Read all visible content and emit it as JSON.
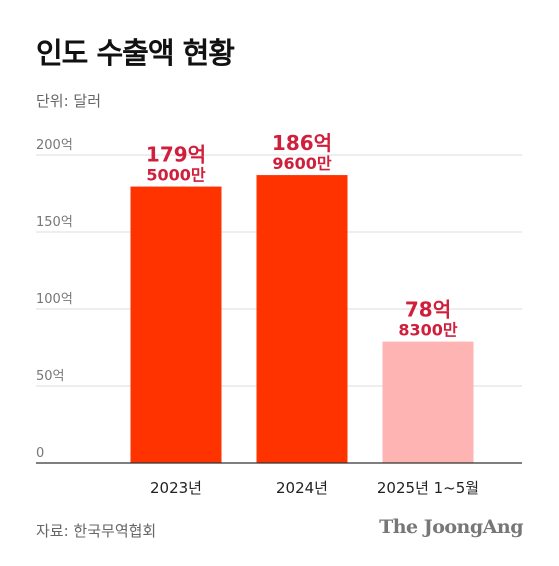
{
  "header": {
    "title": "인도 수출액 현황",
    "unit": "단위: 달러"
  },
  "footer": {
    "source": "자료: 한국무역협회",
    "brand": "The JoongAng"
  },
  "colors": {
    "bar_primary": "#ff3300",
    "bar_partial": "#ffb4b4",
    "label_text": "#d01f3c",
    "grid": "#dddddd",
    "axis": "#333333"
  },
  "chart_data": {
    "type": "bar",
    "categories": [
      "2023년",
      "2024년",
      "2025년 1~5월"
    ],
    "values": [
      179.5,
      186.96,
      78.83
    ],
    "value_labels": [
      [
        "179억",
        "5000만"
      ],
      [
        "186억",
        "9600만"
      ],
      [
        "78억",
        "8300만"
      ]
    ],
    "bar_colors": [
      "#ff3300",
      "#ff3300",
      "#ffb4b4"
    ],
    "ylim": [
      0,
      200
    ],
    "yticks": [
      0,
      50,
      100,
      150,
      200
    ],
    "ytick_labels": [
      "0",
      "50억",
      "100억",
      "150억",
      "200억"
    ],
    "grid": true,
    "title": "",
    "xlabel": "",
    "ylabel": ""
  }
}
